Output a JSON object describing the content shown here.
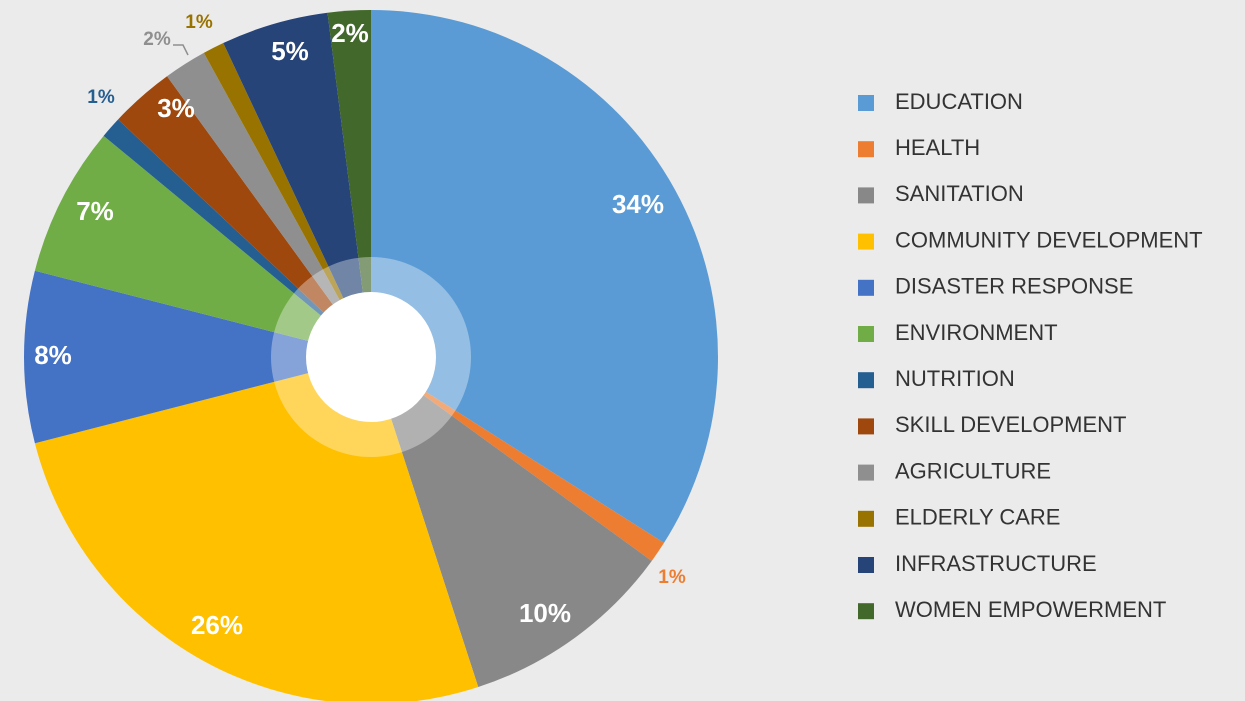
{
  "chart_data": {
    "type": "pie",
    "categories": [
      "EDUCATION",
      "HEALTH",
      "SANITATION",
      "COMMUNITY DEVELOPMENT",
      "DISASTER RESPONSE",
      "ENVIRONMENT",
      "NUTRITION",
      "SKILL DEVELOPMENT",
      "AGRICULTURE",
      "ELDERLY CARE",
      "INFRASTRUCTURE",
      "WOMEN EMPOWERMENT"
    ],
    "values": [
      34,
      1,
      10,
      26,
      8,
      7,
      1,
      3,
      2,
      1,
      5,
      2
    ],
    "value_labels": [
      "34%",
      "1%",
      "10%",
      "26%",
      "8%",
      "7%",
      "1%",
      "3%",
      "2%",
      "1%",
      "5%",
      "2%"
    ],
    "colors": [
      "#5b9bd5",
      "#ed7d31",
      "#888888",
      "#ffc000",
      "#4472c4",
      "#70ad47",
      "#255e91",
      "#9e480e",
      "#8f8f8f",
      "#997300",
      "#264478",
      "#43682b"
    ],
    "legend": "right"
  }
}
